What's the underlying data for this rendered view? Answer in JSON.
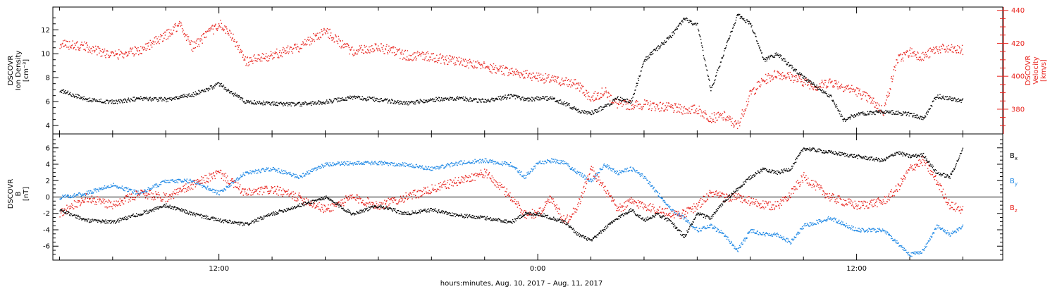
{
  "xlabel": "hours:minutes, Aug. 10, 2017 – Aug. 11, 2017",
  "x_ticks": [
    "12:00",
    "0:00",
    "12:00"
  ],
  "colors": {
    "black": "#000000",
    "red": "#e8221c",
    "blue": "#1e88e5"
  },
  "chart_data": [
    {
      "type": "scatter",
      "panel": "top",
      "x_range_hours": [
        5.75,
        41.5
      ],
      "ylabel_left": [
        "DSCOVR",
        "Ion Density",
        "[cm⁻³]"
      ],
      "ylabel_right": [
        "DSCOVR",
        "Velocity",
        "[km/s]"
      ],
      "y_left": {
        "ylim": [
          3.3,
          13.9
        ],
        "ticks": [
          4,
          6,
          8,
          10,
          12
        ]
      },
      "y_right": {
        "ylim": [
          365,
          442
        ],
        "ticks": [
          380,
          400,
          420,
          440
        ]
      },
      "series": [
        {
          "name": "Ion Density",
          "axis": "left",
          "color": "#000000",
          "x": [
            6,
            7,
            8,
            9,
            10,
            11,
            12,
            13,
            14,
            15,
            16,
            17,
            18,
            19,
            20,
            21,
            22,
            23,
            23.5,
            24,
            24.5,
            25,
            25.5,
            26,
            26.5,
            27,
            27.5,
            28,
            28.5,
            29,
            29.5,
            30,
            30.5,
            31,
            31.5,
            32,
            32.5,
            33,
            34,
            35,
            35.5,
            36,
            37,
            38,
            38.5,
            39,
            40
          ],
          "y": [
            7,
            6.2,
            6,
            6.3,
            6.2,
            6.6,
            7.5,
            6,
            5.9,
            5.8,
            6,
            6.4,
            6.2,
            5.9,
            6.2,
            6.3,
            6.1,
            6.5,
            6.2,
            6.3,
            6.3,
            5.9,
            5.3,
            5.1,
            5.6,
            6.3,
            6,
            9.5,
            10.5,
            11.5,
            13,
            12.4,
            7,
            10.2,
            13.3,
            12.5,
            9.5,
            10,
            8,
            6.5,
            4.5,
            5,
            5.2,
            5,
            4.6,
            6.5,
            6.1
          ]
        },
        {
          "name": "Velocity",
          "axis": "right",
          "color": "#e8221c",
          "x": [
            6,
            7,
            8,
            9,
            10,
            10.5,
            11,
            12,
            12.5,
            13,
            14,
            15,
            16,
            17,
            18,
            19,
            20,
            21,
            22,
            23,
            24,
            24.5,
            25,
            25.5,
            26,
            26.5,
            27,
            27.5,
            28,
            28.5,
            29,
            29.5,
            30,
            30.5,
            31,
            31.5,
            32,
            32.5,
            33,
            33.5,
            34,
            34.5,
            35,
            35.5,
            36,
            36.5,
            37,
            37.5,
            38,
            38.5,
            39,
            40
          ],
          "y": [
            420,
            418,
            413,
            416,
            425,
            432,
            418,
            432,
            424,
            409,
            413,
            418,
            428,
            415,
            418,
            413,
            412,
            409,
            406,
            403,
            400,
            398,
            397,
            395,
            387,
            391,
            383,
            383,
            383,
            382,
            381,
            380,
            380,
            375,
            376,
            370,
            390,
            398,
            402,
            400,
            397,
            394,
            397,
            394,
            391,
            386,
            379,
            410,
            415,
            412,
            417,
            416
          ]
        }
      ]
    },
    {
      "type": "scatter",
      "panel": "bottom",
      "x_range_hours": [
        5.75,
        41.5
      ],
      "ylabel_left": [
        "DSCOVR",
        "B",
        "[nT]"
      ],
      "ylim": [
        -7.7,
        7.7
      ],
      "y_ticks": [
        -6,
        -4,
        -2,
        0,
        2,
        4,
        6
      ],
      "legend": "right",
      "series": [
        {
          "name": "Bx",
          "label": "B",
          "sub": "x",
          "color": "#000000",
          "x": [
            6,
            7,
            8,
            9,
            10,
            11,
            12,
            13,
            14,
            15,
            16,
            17,
            18,
            19,
            20,
            21,
            22,
            23,
            23.5,
            24,
            24.5,
            25,
            25.5,
            26,
            26.5,
            27,
            27.5,
            28,
            28.5,
            29,
            29.5,
            30,
            30.5,
            31,
            31.5,
            32,
            32.5,
            33,
            33.5,
            34,
            35,
            36,
            37,
            37.5,
            38,
            38.5,
            39,
            39.5,
            40
          ],
          "y": [
            -1.5,
            -2.8,
            -3,
            -2,
            -1,
            -2,
            -2.8,
            -3.3,
            -2,
            -1,
            0,
            -2,
            -1,
            -2,
            -1.5,
            -2.2,
            -2.5,
            -3,
            -2,
            -2,
            -2.5,
            -3,
            -4.5,
            -5.3,
            -3.8,
            -2.5,
            -1.5,
            -2.8,
            -2,
            -3,
            -4.8,
            -2,
            -2.5,
            -0.5,
            1,
            2.5,
            3.5,
            3,
            3.5,
            6,
            5.5,
            5,
            4.5,
            5.5,
            5,
            5.2,
            3,
            2.5,
            6
          ]
        },
        {
          "name": "By",
          "label": "B",
          "sub": "y",
          "color": "#1e88e5",
          "x": [
            6,
            7,
            8,
            9,
            10,
            11,
            12,
            13,
            14,
            15,
            16,
            17,
            18,
            19,
            20,
            21,
            22,
            23,
            23.5,
            24,
            24.5,
            25,
            25.5,
            26,
            26.5,
            27,
            27.5,
            28,
            28.5,
            29,
            29.5,
            30,
            30.5,
            31,
            31.5,
            32,
            32.5,
            33,
            33.5,
            34,
            35,
            36,
            37,
            37.5,
            38,
            38.5,
            39,
            39.5,
            40
          ],
          "y": [
            0,
            0.5,
            1.5,
            0.5,
            2,
            2,
            0.5,
            3,
            3.5,
            2.5,
            4,
            4.2,
            4.2,
            4,
            3.5,
            4.2,
            4.5,
            4,
            2.5,
            4.2,
            4.5,
            4.2,
            3,
            2,
            4,
            3,
            3.5,
            2.5,
            0.5,
            -1.5,
            -2.5,
            -4,
            -3.5,
            -4.5,
            -6.5,
            -4,
            -4.5,
            -4.5,
            -5.5,
            -3.5,
            -2.5,
            -4,
            -4,
            -5.5,
            -7,
            -6.5,
            -3.5,
            -4.5,
            -3.5
          ]
        },
        {
          "name": "Bz",
          "label": "B",
          "sub": "z",
          "color": "#e8221c",
          "x": [
            6,
            7,
            8,
            9,
            10,
            11,
            12,
            13,
            14,
            15,
            16,
            17,
            18,
            19,
            20,
            21,
            22,
            23,
            23.5,
            24,
            24.5,
            25,
            25.5,
            26,
            26.5,
            27,
            27.5,
            28,
            28.5,
            29,
            29.5,
            30,
            30.5,
            31,
            31.5,
            32,
            32.5,
            33,
            33.5,
            34,
            35,
            36,
            37,
            37.5,
            38,
            38.5,
            39,
            39.5,
            40
          ],
          "y": [
            -2,
            0,
            -1,
            0.5,
            0,
            1.5,
            3,
            0.5,
            1,
            0,
            -1.5,
            0,
            -1,
            0,
            1,
            2,
            3,
            0,
            -2,
            -2,
            0,
            -3,
            -1,
            3.5,
            1,
            -1.5,
            -0.5,
            -1,
            -1.5,
            -2,
            -2,
            -1,
            0.5,
            0,
            0,
            -0.5,
            -1,
            -1,
            0.5,
            2.5,
            0,
            -1,
            -0.5,
            1,
            3.5,
            4.5,
            2,
            -1,
            -1.5
          ]
        }
      ]
    }
  ]
}
